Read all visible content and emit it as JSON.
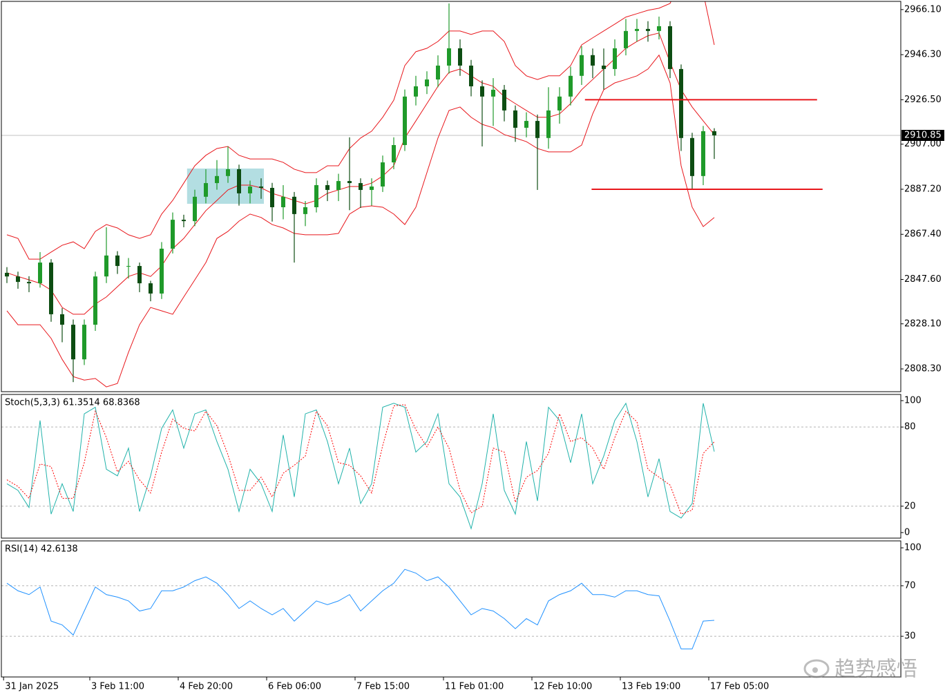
{
  "chart_data": [
    {
      "type": "candlestick",
      "x": [
        0,
        1,
        2,
        3,
        4,
        5,
        6,
        7,
        8,
        9,
        10,
        11,
        12,
        13,
        14,
        15,
        16,
        17,
        18,
        19,
        20,
        21,
        22,
        23,
        24,
        25,
        26,
        27,
        28,
        29,
        30,
        31,
        32,
        33,
        34,
        35,
        36,
        37,
        38,
        39,
        40,
        41,
        42,
        43,
        44,
        45,
        46,
        47,
        48,
        49,
        50,
        51,
        52,
        53,
        54,
        55,
        56,
        57,
        58,
        59,
        60,
        61,
        62,
        63,
        64
      ],
      "open": [
        2850.5,
        2848.9,
        2846.5,
        2845.9,
        2855.0,
        2832.3,
        2827.7,
        2812.5,
        2827.7,
        2848.9,
        2858.1,
        2853.5,
        2853.5,
        2845.9,
        2841.4,
        2861.1,
        2873.8,
        2873.2,
        2883.9,
        2889.9,
        2893.0,
        2896.0,
        2885.4,
        2888.4,
        2887.8,
        2879.3,
        2883.9,
        2876.3,
        2879.3,
        2889.0,
        2886.9,
        2890.8,
        2889.9,
        2886.9,
        2888.4,
        2899.0,
        2906.6,
        2927.9,
        2932.4,
        2935.4,
        2941.5,
        2949.1,
        2941.5,
        2932.4,
        2927.9,
        2930.9,
        2921.8,
        2914.2,
        2917.2,
        2909.7,
        2921.8,
        2927.9,
        2937.0,
        2946.1,
        2941.5,
        2940.0,
        2949.1,
        2956.7,
        2957.6,
        2956.7,
        2958.8,
        2940.0,
        2909.7,
        2893.0,
        2912.7
      ],
      "high": [
        2853.0,
        2851.0,
        2849.0,
        2859.6,
        2856.5,
        2835.0,
        2830.0,
        2830.0,
        2851.0,
        2870.5,
        2860.0,
        2857.0,
        2855.0,
        2847.0,
        2864.0,
        2877.0,
        2876.0,
        2887.0,
        2896.0,
        2900.0,
        2906.0,
        2898.0,
        2891.0,
        2892.0,
        2890.0,
        2889.0,
        2886.0,
        2882.0,
        2892.0,
        2891.0,
        2894.0,
        2910.0,
        2892.0,
        2892.0,
        2902.0,
        2910.0,
        2931.0,
        2937.0,
        2939.0,
        2946.0,
        2968.8,
        2953.0,
        2944.0,
        2935.0,
        2936.0,
        2933.0,
        2924.0,
        2921.0,
        2920.0,
        2932.0,
        2932.0,
        2941.0,
        2950.0,
        2949.0,
        2949.0,
        2953.0,
        2962.0,
        2962.0,
        2961.0,
        2963.0,
        2961.0,
        2942.0,
        2912.0,
        2915.0,
        2914.0
      ],
      "low": [
        2846.0,
        2843.5,
        2842.0,
        2844.0,
        2829.0,
        2820.0,
        2802.5,
        2810.0,
        2825.0,
        2846.0,
        2850.0,
        2848.0,
        2842.0,
        2838.0,
        2839.0,
        2859.0,
        2870.5,
        2871.0,
        2881.0,
        2887.0,
        2890.0,
        2880.0,
        2881.0,
        2883.0,
        2873.0,
        2874.0,
        2855.0,
        2871.0,
        2877.0,
        2882.0,
        2882.0,
        2878.0,
        2879.0,
        2880.0,
        2886.0,
        2896.0,
        2904.0,
        2924.0,
        2929.0,
        2932.0,
        2938.0,
        2937.0,
        2928.0,
        2906.0,
        2915.0,
        2917.0,
        2908.0,
        2910.0,
        2886.9,
        2905.0,
        2916.0,
        2924.0,
        2933.0,
        2936.0,
        2931.0,
        2937.0,
        2946.0,
        2952.0,
        2952.0,
        2953.0,
        2936.0,
        2904.0,
        2887.5,
        2889.0,
        2900.5
      ],
      "close": [
        2848.9,
        2846.5,
        2845.9,
        2855.0,
        2832.3,
        2827.7,
        2812.5,
        2827.7,
        2848.9,
        2858.1,
        2853.5,
        2853.5,
        2845.9,
        2841.4,
        2861.1,
        2873.8,
        2873.2,
        2883.9,
        2889.9,
        2893.0,
        2896.0,
        2885.4,
        2888.4,
        2887.8,
        2879.3,
        2883.9,
        2876.3,
        2879.3,
        2889.0,
        2886.9,
        2890.8,
        2889.9,
        2886.9,
        2888.4,
        2899.0,
        2906.6,
        2927.9,
        2932.4,
        2935.4,
        2941.5,
        2949.1,
        2941.5,
        2932.4,
        2927.9,
        2930.9,
        2921.8,
        2914.2,
        2917.2,
        2909.7,
        2921.8,
        2927.9,
        2937.0,
        2946.1,
        2941.5,
        2940.0,
        2949.1,
        2956.7,
        2957.6,
        2956.7,
        2958.8,
        2940.0,
        2909.7,
        2893.0,
        2912.7,
        2910.85
      ],
      "up_color": "#1f9a2a",
      "down_color": "#0d4d12",
      "bands": [
        {
          "color": "#e8161b",
          "values": [
            2867.2,
            2865.6,
            2856.5,
            2856.5,
            2859.6,
            2862.6,
            2864.1,
            2861.1,
            2868.7,
            2871.7,
            2870.2,
            2867.2,
            2865.6,
            2867.2,
            2876.3,
            2882.3,
            2889.9,
            2897.5,
            2902.1,
            2905.1,
            2906.0,
            2902.1,
            2900.5,
            2900.5,
            2900.5,
            2899.0,
            2896.0,
            2894.5,
            2894.5,
            2897.5,
            2897.5,
            2905.1,
            2909.7,
            2912.7,
            2918.8,
            2926.3,
            2941.5,
            2947.6,
            2949.1,
            2952.1,
            2956.7,
            2956.7,
            2955.2,
            2956.7,
            2956.7,
            2952.1,
            2941.5,
            2937.0,
            2935.4,
            2937.0,
            2937.0,
            2941.5,
            2950.6,
            2953.7,
            2956.7,
            2959.7,
            2962.8,
            2964.3,
            2965.8,
            2966.7,
            2968.8,
            2979.5,
            2982.5,
            2973.4,
            2950.6
          ]
        },
        {
          "color": "#e8161b",
          "values": [
            2850.5,
            2848.9,
            2847.4,
            2845.9,
            2842.9,
            2835.3,
            2832.3,
            2832.3,
            2836.8,
            2839.9,
            2844.4,
            2848.9,
            2850.5,
            2848.9,
            2853.5,
            2861.1,
            2865.6,
            2871.7,
            2877.8,
            2882.3,
            2886.9,
            2889.0,
            2889.0,
            2887.8,
            2885.4,
            2883.9,
            2882.3,
            2880.8,
            2882.3,
            2885.4,
            2886.9,
            2888.4,
            2888.4,
            2889.9,
            2893.0,
            2897.5,
            2909.7,
            2917.2,
            2924.8,
            2932.4,
            2938.5,
            2940.0,
            2937.0,
            2933.9,
            2932.4,
            2927.9,
            2924.8,
            2921.8,
            2918.8,
            2918.8,
            2920.3,
            2924.8,
            2930.9,
            2935.4,
            2940.0,
            2944.5,
            2949.1,
            2952.1,
            2954.6,
            2955.8,
            2943.0,
            2930.9,
            2923.3,
            2917.2,
            2911.2
          ]
        },
        {
          "color": "#e8161b",
          "values": [
            2833.8,
            2827.7,
            2827.7,
            2827.7,
            2821.7,
            2812.5,
            2804.9,
            2803.4,
            2804.1,
            2800.4,
            2801.9,
            2815.6,
            2827.7,
            2835.3,
            2833.8,
            2832.3,
            2839.9,
            2847.4,
            2855.0,
            2865.6,
            2868.7,
            2873.2,
            2876.3,
            2874.8,
            2871.7,
            2870.2,
            2867.8,
            2867.2,
            2867.2,
            2867.2,
            2867.8,
            2876.3,
            2879.3,
            2879.9,
            2879.3,
            2876.3,
            2871.7,
            2879.3,
            2894.5,
            2909.7,
            2921.8,
            2923.3,
            2918.8,
            2915.7,
            2914.2,
            2911.2,
            2909.7,
            2908.1,
            2905.1,
            2903.6,
            2903.6,
            2903.6,
            2906.6,
            2920.3,
            2930.9,
            2933.9,
            2935.4,
            2937.0,
            2940.0,
            2946.1,
            2933.9,
            2897.5,
            2879.3,
            2870.8,
            2874.8
          ]
        }
      ],
      "levels": [
        {
          "value": 2926.5,
          "xrange": [
            52.3,
            73.3
          ],
          "color": "#e8161b"
        },
        {
          "value": 2887.2,
          "xrange": [
            52.9,
            73.8
          ],
          "color": "#e8161b"
        }
      ],
      "zone": {
        "xrange": [
          16.3,
          23.25
        ],
        "yrange": [
          2880.8,
          2896.3
        ],
        "color": "#a6d8dd"
      },
      "current_price": 2910.85,
      "xlim": [
        -0.5,
        80.875
      ],
      "ylim": [
        2798.3,
        2969.7
      ],
      "yticks": [
        {
          "value": 2966.1,
          "label": "2966.10"
        },
        {
          "value": 2946.3,
          "label": "2946.30"
        },
        {
          "value": 2926.5,
          "label": "2926.50"
        },
        {
          "value": 2907,
          "label": "2907.00"
        },
        {
          "value": 2887.2,
          "label": "2887.20"
        },
        {
          "value": 2867.4,
          "label": "2867.40"
        },
        {
          "value": 2847.6,
          "label": "2847.60"
        },
        {
          "value": 2828.1,
          "label": "2828.10"
        },
        {
          "value": 2808.3,
          "label": "2808.30"
        }
      ]
    },
    {
      "type": "line",
      "title": "Stoch(5,3,3) 61.3514 68.8368",
      "x": [
        0,
        1,
        2,
        3,
        4,
        5,
        6,
        7,
        8,
        9,
        10,
        11,
        12,
        13,
        14,
        15,
        16,
        17,
        18,
        19,
        20,
        21,
        22,
        23,
        24,
        25,
        26,
        27,
        28,
        29,
        30,
        31,
        32,
        33,
        34,
        35,
        36,
        37,
        38,
        39,
        40,
        41,
        42,
        43,
        44,
        45,
        46,
        47,
        48,
        49,
        50,
        51,
        52,
        53,
        54,
        55,
        56,
        57,
        58,
        59,
        60,
        61,
        62,
        63,
        64
      ],
      "series": [
        {
          "color": "#20b2aa",
          "style": "solid",
          "values": [
            37,
            32,
            19,
            85,
            14,
            37,
            16,
            90,
            95,
            48,
            43,
            64,
            16,
            43,
            79,
            93,
            64,
            90,
            93,
            69,
            48,
            16,
            48,
            37,
            16,
            74,
            27,
            90,
            93,
            69,
            37,
            64,
            22,
            37,
            95,
            98,
            95,
            61,
            69,
            90,
            37,
            27,
            3,
            37,
            90,
            32,
            14,
            69,
            24,
            95,
            85,
            53,
            90,
            37,
            58,
            85,
            98,
            69,
            27,
            56,
            16,
            11,
            22,
            98,
            61.4
          ]
        },
        {
          "color": "#ff0000",
          "style": "dotted",
          "values": [
            40,
            35,
            26,
            52,
            50,
            26,
            26,
            53,
            92,
            72,
            46,
            54,
            40,
            30,
            61,
            86,
            79,
            77,
            92,
            81,
            59,
            32,
            32,
            42,
            27,
            45,
            51,
            58,
            92,
            81,
            53,
            51,
            43,
            30,
            66,
            96,
            97,
            78,
            65,
            80,
            64,
            32,
            15,
            20,
            64,
            61,
            23,
            42,
            47,
            60,
            90,
            69,
            72,
            64,
            48,
            72,
            92,
            84,
            48,
            42,
            36,
            14,
            17,
            60,
            68.8
          ]
        }
      ],
      "levels": [
        20,
        80
      ],
      "xlim": [
        -0.5,
        80.875
      ],
      "ylim": [
        -4.2,
        104.7
      ],
      "yticks": [
        0,
        20,
        80,
        100
      ]
    },
    {
      "type": "line",
      "title": "RSI(14) 42.6138",
      "x": [
        0,
        1,
        2,
        3,
        4,
        5,
        6,
        7,
        8,
        9,
        10,
        11,
        12,
        13,
        14,
        15,
        16,
        17,
        18,
        19,
        20,
        21,
        22,
        23,
        24,
        25,
        26,
        27,
        28,
        29,
        30,
        31,
        32,
        33,
        34,
        35,
        36,
        37,
        38,
        39,
        40,
        41,
        42,
        43,
        44,
        45,
        46,
        47,
        48,
        49,
        50,
        51,
        52,
        53,
        54,
        55,
        56,
        57,
        58,
        59,
        60,
        61,
        62,
        63,
        64
      ],
      "series": [
        {
          "color": "#1e90ff",
          "style": "solid",
          "values": [
            72,
            66,
            63,
            69,
            42,
            39,
            31,
            50,
            69,
            63,
            61,
            58,
            50,
            52,
            66,
            66,
            69,
            74,
            77,
            72,
            63,
            52,
            58,
            52,
            47,
            52,
            42,
            50,
            58,
            55,
            58,
            63,
            50,
            58,
            66,
            72,
            83,
            80,
            74,
            77,
            69,
            58,
            47,
            52,
            50,
            44,
            36,
            44,
            39,
            58,
            63,
            66,
            72,
            63,
            63,
            61,
            66,
            66,
            63,
            62,
            42,
            20,
            20,
            42,
            42.6138
          ]
        }
      ],
      "levels": [
        30,
        70
      ],
      "xlim": [
        -0.5,
        80.875
      ],
      "ylim": [
        -2.2,
        105.5
      ],
      "yticks": [
        30,
        70,
        100
      ],
      "xticks": [
        {
          "value": -0.3,
          "label": "31 Jan 2025"
        },
        {
          "value": 7.5,
          "label": "3 Feb 11:00"
        },
        {
          "value": 15.5,
          "label": "4 Feb 20:00"
        },
        {
          "value": 23.5,
          "label": "6 Feb 06:00"
        },
        {
          "value": 31.5,
          "label": "7 Feb 15:00"
        },
        {
          "value": 39.5,
          "label": "11 Feb 01:00"
        },
        {
          "value": 47.5,
          "label": "12 Feb 10:00"
        },
        {
          "value": 55.5,
          "label": "13 Feb 19:00"
        },
        {
          "value": 63.5,
          "label": "17 Feb 05:00"
        }
      ]
    }
  ],
  "watermark": "趋势感悟"
}
